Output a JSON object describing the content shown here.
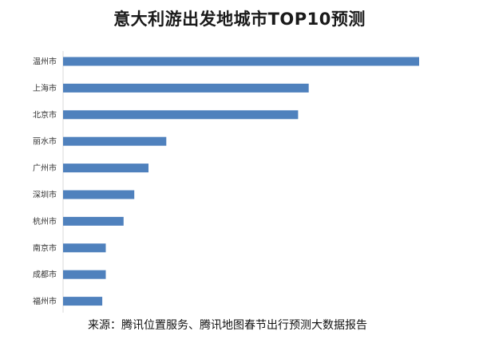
{
  "chart_data": {
    "type": "bar",
    "orientation": "horizontal",
    "title": "意大利游出发地城市TOP10预测",
    "categories": [
      "温州市",
      "上海市",
      "北京市",
      "丽水市",
      "广州市",
      "深圳市",
      "杭州市",
      "南京市",
      "成都市",
      "福州市"
    ],
    "values": [
      100,
      69,
      66,
      29,
      24,
      20,
      17,
      12,
      12,
      11
    ],
    "xlim": [
      0,
      100
    ],
    "grid": false,
    "legend": "none",
    "bar_color": "#4f81bd",
    "source": "来源：腾讯位置服务、腾讯地图春节出行预测大数据报告"
  }
}
